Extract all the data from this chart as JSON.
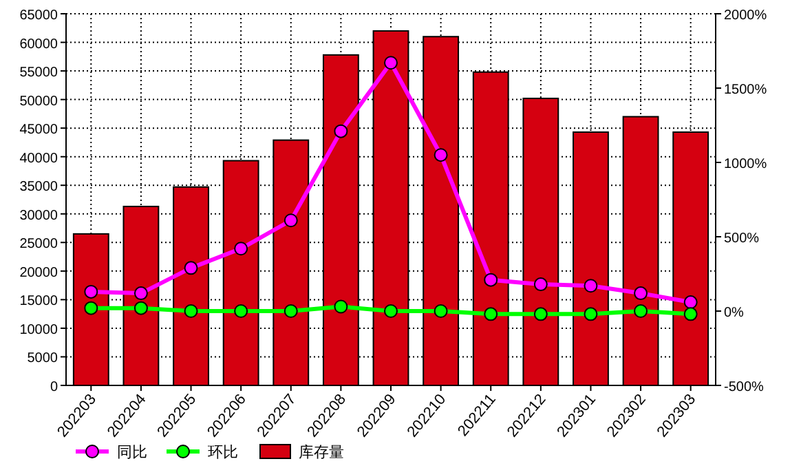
{
  "chart_data": {
    "type": "bar",
    "categories": [
      "202203",
      "202204",
      "202205",
      "202206",
      "202207",
      "202208",
      "202209",
      "202210",
      "202211",
      "202212",
      "202301",
      "202302",
      "202303"
    ],
    "series": [
      {
        "name": "同比",
        "type": "line",
        "axis": "y2",
        "color": "#ff00ff",
        "values": [
          130,
          120,
          290,
          420,
          610,
          1210,
          1670,
          1050,
          210,
          180,
          170,
          120,
          60
        ]
      },
      {
        "name": "环比",
        "type": "line",
        "axis": "y2",
        "color": "#00ff00",
        "values": [
          20,
          20,
          0,
          0,
          0,
          30,
          0,
          0,
          -20,
          -20,
          -20,
          0,
          -20
        ]
      },
      {
        "name": "库存量",
        "color": "#d50010",
        "values": [
          26500,
          31300,
          34700,
          39300,
          42900,
          57800,
          62000,
          61000,
          54800,
          50200,
          44300,
          47000,
          44300
        ]
      }
    ],
    "ylim": [
      0,
      65000
    ],
    "yticks": [
      0,
      5000,
      10000,
      15000,
      20000,
      25000,
      30000,
      35000,
      40000,
      45000,
      50000,
      55000,
      60000,
      65000
    ],
    "y2lim": [
      -500,
      2000
    ],
    "y2ticks": [
      {
        "value": -500,
        "label": "-500%"
      },
      {
        "value": 0,
        "label": "0%"
      },
      {
        "value": 500,
        "label": "500%"
      },
      {
        "value": 1000,
        "label": "1000%"
      },
      {
        "value": 1500,
        "label": "1500%"
      },
      {
        "value": 2000,
        "label": "2000%"
      }
    ],
    "grid": true,
    "legend": "bottom",
    "marker": "circle"
  }
}
